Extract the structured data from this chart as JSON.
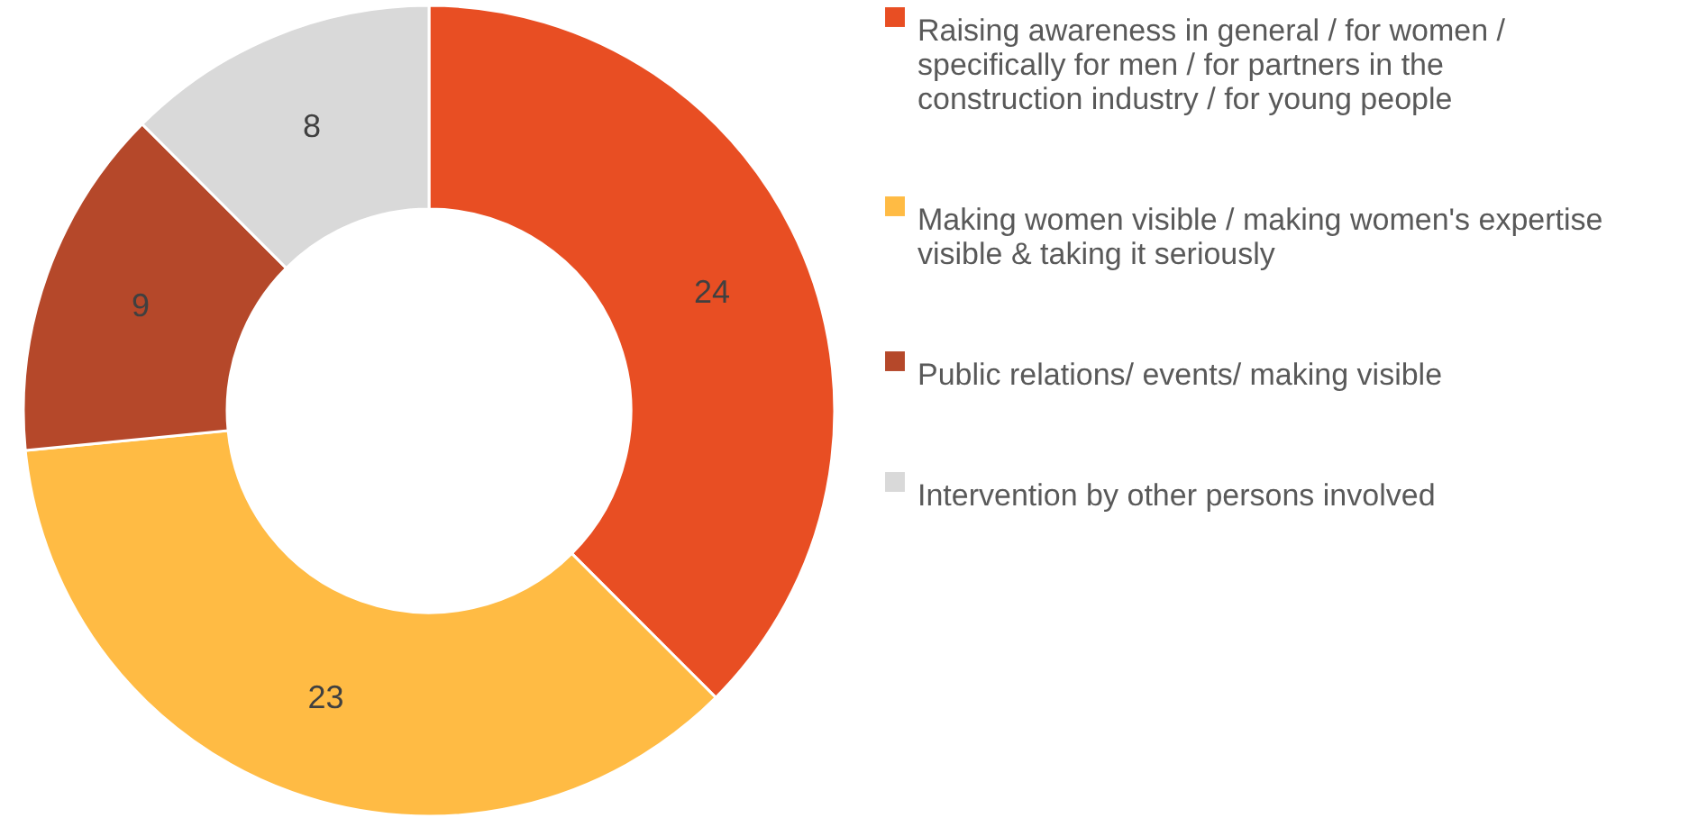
{
  "chart_data": {
    "type": "donut",
    "categories": [
      "Raising awareness in general / for women / specifically for men / for partners in the construction industry / for young people",
      "Making women visible / making women's expertise visible & taking it seriously",
      "Public relations/ events/ making visible",
      "Intervention by other persons involved"
    ],
    "values": [
      24,
      23,
      9,
      8
    ],
    "colors": [
      "#e84e23",
      "#ffbb44",
      "#b5482a",
      "#d9d9d9"
    ],
    "data_labels": true,
    "legend": "right"
  }
}
